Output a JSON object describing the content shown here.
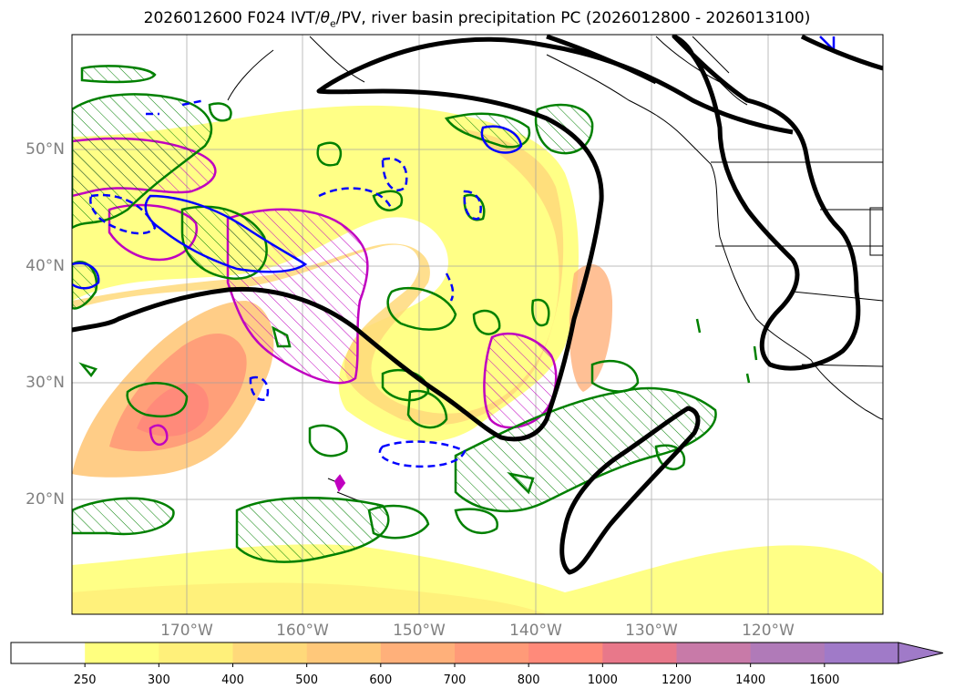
{
  "title": {
    "prefix": "2026012600 F024 IVT/",
    "theta": "θ",
    "sub": "e",
    "suffix": "/PV, river basin precipitation PC (2026012800 - 2026013100)"
  },
  "lat_labels": [
    "50°N",
    "40°N",
    "30°N",
    "20°N"
  ],
  "lon_labels": [
    "170°W",
    "160°W",
    "150°W",
    "140°W",
    "130°W",
    "120°W"
  ],
  "colorbar": {
    "labels": [
      "250",
      "300",
      "400",
      "500",
      "600",
      "700",
      "800",
      "1000",
      "1200",
      "1400",
      "1600"
    ],
    "colors": [
      "#ffffff",
      "#ffff7f",
      "#fff07a",
      "#ffd97a",
      "#ffc87a",
      "#ffb07a",
      "#ff9a78",
      "#ff8a7a",
      "#e8788a",
      "#c87aa8",
      "#b07ab8",
      "#a07ac8"
    ]
  },
  "contour_colors": {
    "pv_hatched": "#008000",
    "theta_e_solid": "#0000ff",
    "ivt_magenta": "#c000c0",
    "bold": "#000000"
  }
}
